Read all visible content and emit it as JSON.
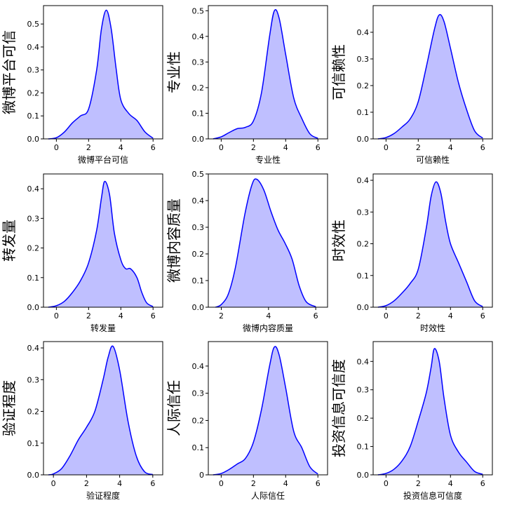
{
  "figure": {
    "color": "#0000ff",
    "fill_color": "#0000ff",
    "fill_opacity": 0.25
  },
  "chart_data": [
    {
      "type": "area",
      "xlabel": "微博平台可信",
      "ylabel": "微博平台可信",
      "xlim": [
        -0.8,
        6.6
      ],
      "ylim": [
        0,
        0.58
      ],
      "xticks": [
        0,
        2,
        4,
        6
      ],
      "xtick_labels": [
        "0",
        "2",
        "4",
        "6"
      ],
      "yticks": [
        0,
        0.1,
        0.2,
        0.3,
        0.4,
        0.5
      ],
      "ytick_labels": [
        "0.0",
        "0.1",
        "0.2",
        "0.3",
        "0.4",
        "0.5"
      ],
      "x": [
        -0.5,
        0,
        0.5,
        1,
        1.5,
        2,
        2.5,
        2.8,
        3.1,
        3.4,
        3.7,
        4,
        4.5,
        5,
        5.5,
        6
      ],
      "y": [
        0.0,
        0.005,
        0.03,
        0.07,
        0.1,
        0.13,
        0.3,
        0.48,
        0.56,
        0.48,
        0.31,
        0.17,
        0.11,
        0.08,
        0.03,
        0.003
      ]
    },
    {
      "type": "area",
      "xlabel": "专业性",
      "ylabel": "专业性",
      "xlim": [
        -0.8,
        6.6
      ],
      "ylim": [
        0,
        0.52
      ],
      "xticks": [
        0,
        2,
        4,
        6
      ],
      "xtick_labels": [
        "0",
        "2",
        "4",
        "6"
      ],
      "yticks": [
        0,
        0.1,
        0.2,
        0.3,
        0.4,
        0.5
      ],
      "ytick_labels": [
        "0.0",
        "0.1",
        "0.2",
        "0.3",
        "0.4",
        "0.5"
      ],
      "x": [
        -0.5,
        0,
        0.5,
        1,
        1.5,
        2,
        2.5,
        3,
        3.3,
        3.6,
        4,
        4.5,
        5,
        5.5,
        6
      ],
      "y": [
        0.0,
        0.008,
        0.025,
        0.04,
        0.045,
        0.07,
        0.18,
        0.4,
        0.5,
        0.47,
        0.33,
        0.16,
        0.08,
        0.02,
        0.002
      ]
    },
    {
      "type": "area",
      "xlabel": "可信赖性",
      "ylabel": "可信赖性",
      "xlim": [
        -0.8,
        6.6
      ],
      "ylim": [
        0,
        0.5
      ],
      "xticks": [
        0,
        2,
        4,
        6
      ],
      "xtick_labels": [
        "0",
        "2",
        "4",
        "6"
      ],
      "yticks": [
        0,
        0.1,
        0.2,
        0.3,
        0.4
      ],
      "ytick_labels": [
        "0.0",
        "0.1",
        "0.2",
        "0.3",
        "0.4"
      ],
      "x": [
        -0.5,
        0,
        0.5,
        1,
        1.5,
        2,
        2.5,
        3,
        3.3,
        3.6,
        4,
        4.5,
        5,
        5.5,
        6
      ],
      "y": [
        0.0,
        0.005,
        0.02,
        0.045,
        0.075,
        0.14,
        0.27,
        0.41,
        0.465,
        0.44,
        0.34,
        0.21,
        0.11,
        0.03,
        0.003
      ]
    },
    {
      "type": "area",
      "xlabel": "转发量",
      "ylabel": "转发量",
      "xlim": [
        -0.8,
        6.6
      ],
      "ylim": [
        0,
        0.45
      ],
      "xticks": [
        0,
        2,
        4,
        6
      ],
      "xtick_labels": [
        "0",
        "2",
        "4",
        "6"
      ],
      "yticks": [
        0,
        0.1,
        0.2,
        0.3,
        0.4
      ],
      "ytick_labels": [
        "0.0",
        "0.1",
        "0.2",
        "0.3",
        "0.4"
      ],
      "x": [
        -0.5,
        0,
        0.5,
        1,
        1.5,
        2,
        2.5,
        2.8,
        3,
        3.3,
        3.6,
        4,
        4.3,
        4.6,
        5,
        5.3,
        5.6,
        6
      ],
      "y": [
        0.0,
        0.005,
        0.02,
        0.05,
        0.09,
        0.15,
        0.26,
        0.37,
        0.425,
        0.38,
        0.25,
        0.16,
        0.13,
        0.13,
        0.1,
        0.05,
        0.015,
        0.002
      ]
    },
    {
      "type": "area",
      "xlabel": "微博内容质量",
      "ylabel": "微博内容质量",
      "xlim": [
        1.45,
        6.5
      ],
      "ylim": [
        0,
        0.5
      ],
      "xticks": [
        2,
        4,
        6
      ],
      "xtick_labels": [
        "2",
        "4",
        "6"
      ],
      "yticks": [
        0,
        0.1,
        0.2,
        0.3,
        0.4,
        0.5
      ],
      "ytick_labels": [
        "0.0",
        "0.1",
        "0.2",
        "0.3",
        "0.4",
        "0.5"
      ],
      "x": [
        1.75,
        2,
        2.3,
        2.6,
        3,
        3.3,
        3.5,
        3.8,
        4.1,
        4.4,
        4.7,
        5,
        5.3,
        5.6,
        6
      ],
      "y": [
        0.0,
        0.01,
        0.05,
        0.15,
        0.35,
        0.46,
        0.48,
        0.44,
        0.36,
        0.29,
        0.24,
        0.18,
        0.08,
        0.02,
        0.002
      ]
    },
    {
      "type": "area",
      "xlabel": "时效性",
      "ylabel": "时效性",
      "xlim": [
        -0.8,
        6.6
      ],
      "ylim": [
        0,
        0.42
      ],
      "xticks": [
        0,
        2,
        4,
        6
      ],
      "xtick_labels": [
        "0",
        "2",
        "4",
        "6"
      ],
      "yticks": [
        0,
        0.1,
        0.2,
        0.3,
        0.4
      ],
      "ytick_labels": [
        "0.0",
        "0.1",
        "0.2",
        "0.3",
        "0.4"
      ],
      "x": [
        -0.5,
        0,
        0.5,
        1,
        1.5,
        2,
        2.5,
        2.8,
        3.1,
        3.4,
        3.7,
        4,
        4.5,
        5,
        5.5,
        6
      ],
      "y": [
        0.0,
        0.005,
        0.02,
        0.045,
        0.075,
        0.12,
        0.25,
        0.35,
        0.395,
        0.36,
        0.27,
        0.2,
        0.14,
        0.08,
        0.02,
        0.002
      ]
    },
    {
      "type": "area",
      "xlabel": "验证程度",
      "ylabel": "验证程度",
      "xlim": [
        -0.6,
        6.6
      ],
      "ylim": [
        0,
        0.42
      ],
      "xticks": [
        0,
        2,
        4,
        6
      ],
      "xtick_labels": [
        "0",
        "2",
        "4",
        "6"
      ],
      "yticks": [
        0,
        0.1,
        0.2,
        0.3,
        0.4
      ],
      "ytick_labels": [
        "0.0",
        "0.1",
        "0.2",
        "0.3",
        "0.4"
      ],
      "x": [
        -0.3,
        0,
        0.5,
        1,
        1.5,
        2,
        2.5,
        3,
        3.3,
        3.6,
        4,
        4.5,
        5,
        5.5,
        6
      ],
      "y": [
        0.0,
        0.003,
        0.02,
        0.06,
        0.11,
        0.15,
        0.2,
        0.3,
        0.37,
        0.405,
        0.33,
        0.17,
        0.06,
        0.01,
        0.001
      ]
    },
    {
      "type": "area",
      "xlabel": "人际信任",
      "ylabel": "人际信任",
      "xlim": [
        -0.8,
        6.6
      ],
      "ylim": [
        0,
        0.49
      ],
      "xticks": [
        0,
        2,
        4,
        6
      ],
      "xtick_labels": [
        "0",
        "2",
        "4",
        "6"
      ],
      "yticks": [
        0,
        0.1,
        0.2,
        0.3,
        0.4
      ],
      "ytick_labels": [
        "0",
        "0.1",
        "0.2",
        "0.3",
        "0.4"
      ],
      "x": [
        -0.5,
        0,
        0.5,
        1,
        1.5,
        2,
        2.5,
        3,
        3.3,
        3.6,
        4,
        4.5,
        5,
        5.5,
        6
      ],
      "y": [
        0.0,
        0.005,
        0.02,
        0.04,
        0.06,
        0.12,
        0.24,
        0.4,
        0.47,
        0.44,
        0.32,
        0.16,
        0.1,
        0.03,
        0.003
      ]
    },
    {
      "type": "area",
      "xlabel": "投资信息可信度",
      "ylabel": "投资信息可信度",
      "xlim": [
        -0.8,
        6.6
      ],
      "ylim": [
        0,
        0.47
      ],
      "xticks": [
        0,
        2,
        4,
        6
      ],
      "xtick_labels": [
        "0",
        "2",
        "4",
        "6"
      ],
      "yticks": [
        0,
        0.1,
        0.2,
        0.3,
        0.4
      ],
      "ytick_labels": [
        "0.0",
        "0.1",
        "0.2",
        "0.3",
        "0.4"
      ],
      "x": [
        -0.5,
        0,
        0.5,
        1,
        1.5,
        2,
        2.5,
        2.8,
        3,
        3.3,
        3.6,
        4,
        4.5,
        5,
        5.5,
        6
      ],
      "y": [
        0.0,
        0.005,
        0.02,
        0.05,
        0.1,
        0.19,
        0.29,
        0.38,
        0.445,
        0.4,
        0.27,
        0.14,
        0.08,
        0.045,
        0.012,
        0.002
      ]
    }
  ]
}
